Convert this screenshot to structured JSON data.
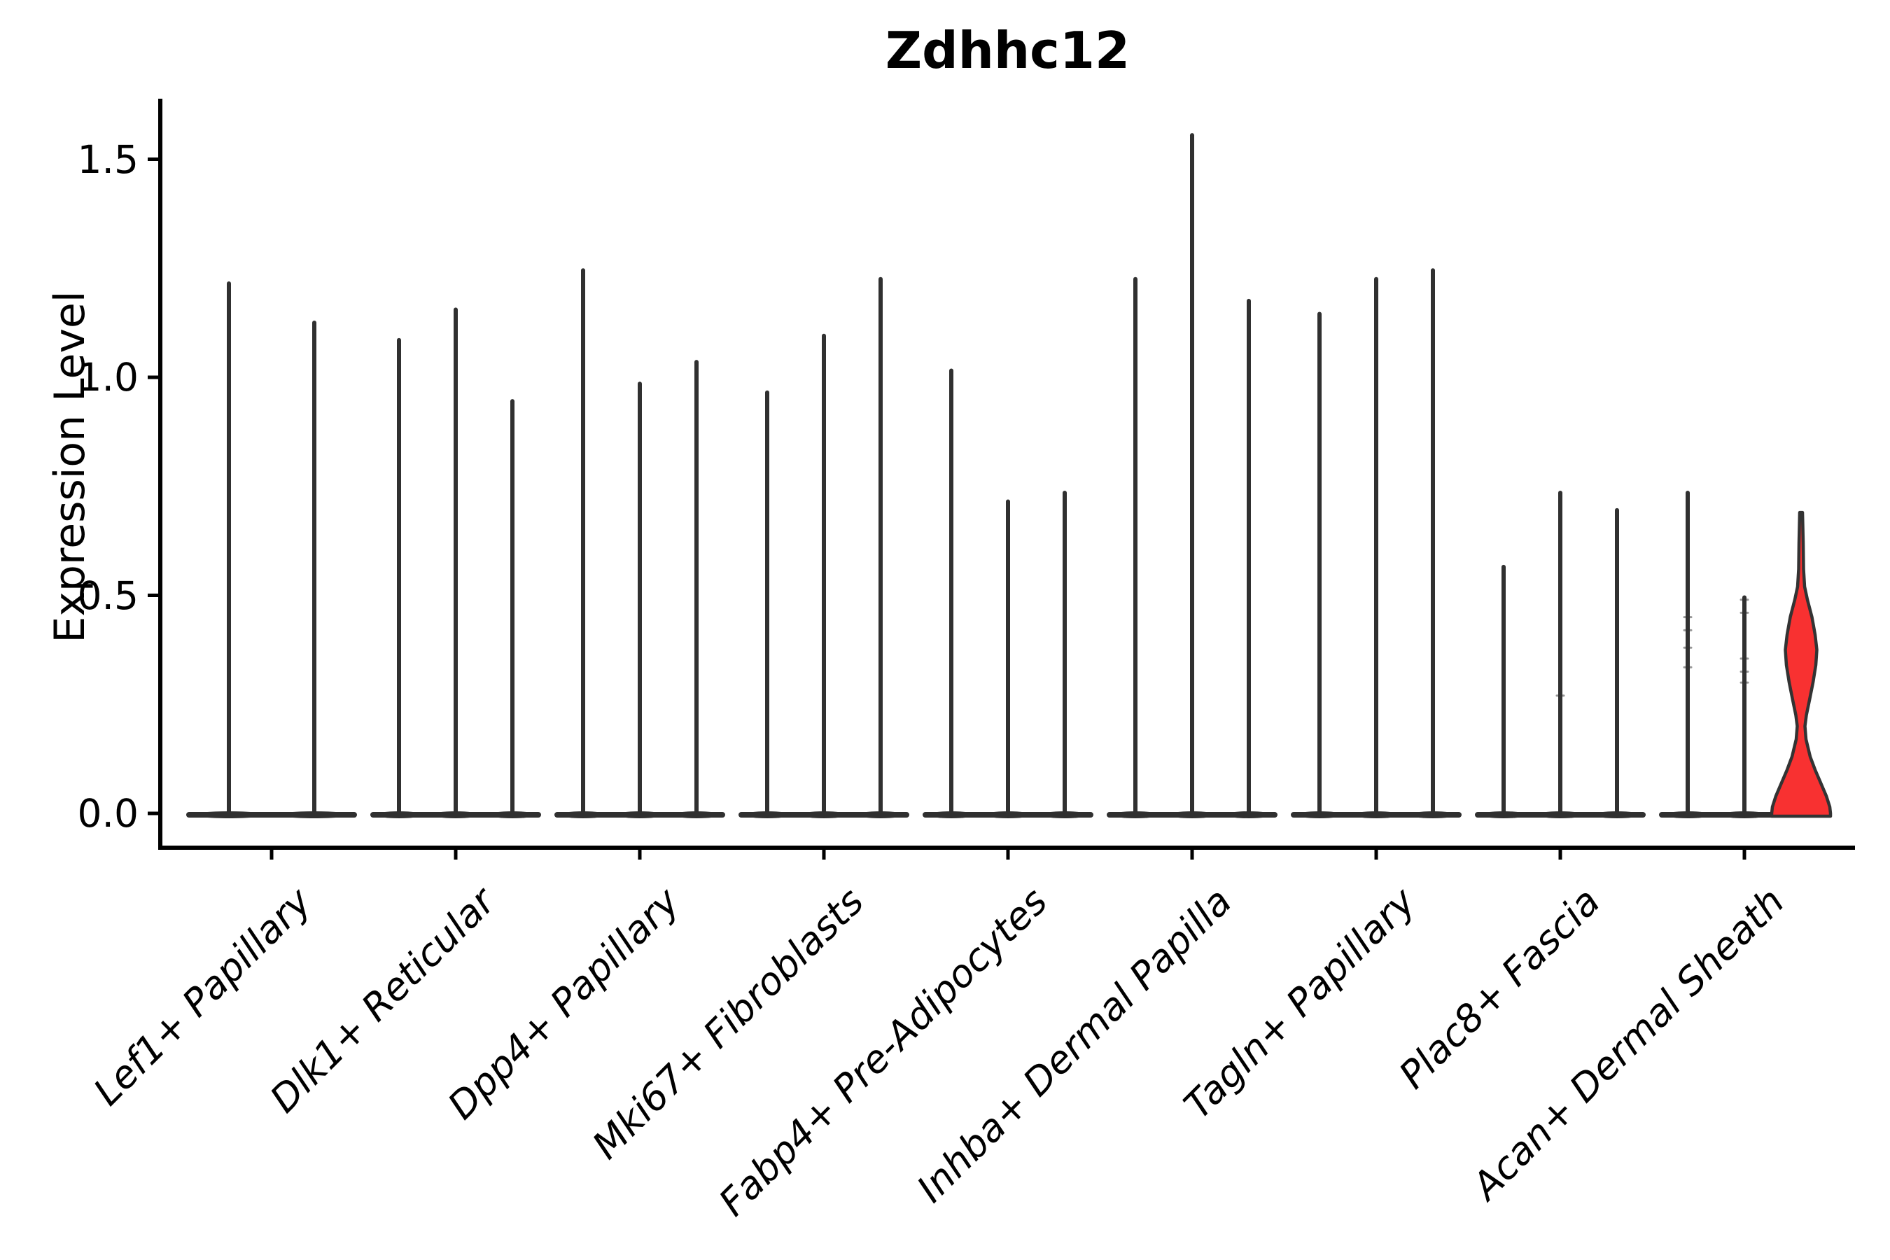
{
  "title": "Zdhhc12",
  "ylabel": "Expression Level",
  "chart_data": {
    "type": "violin",
    "title": "Zdhhc12",
    "xlabel": "",
    "ylabel": "Expression Level",
    "ylim": [
      -0.08,
      1.67
    ],
    "yticks": [
      0.0,
      0.5,
      1.0,
      1.5
    ],
    "ytick_labels": [
      "0.0",
      "0.5",
      "1.0",
      "1.5"
    ],
    "legend": "none",
    "grid": false,
    "description": "Violin plot of Zdhhc12 expression; 9 cell-type groups, each containing 2-3 sub-violins. Almost all violins collapse to a flat base at 0 with a thin spike up to their max expression value. The last violin of the last group is highlighted red with a visible KDE bulge.",
    "categories": [
      "Lef1+ Papillary",
      "Dlk1+ Reticular",
      "Dpp4+ Papillary",
      "Mki67+ Fibroblasts",
      "Fabp4+ Pre-Adipocytes",
      "Inhba+ Dermal Papilla",
      "Tagln+ Papillary",
      "Plac8+ Fascia",
      "Acan+ Dermal Sheath"
    ],
    "groups": [
      {
        "label": "Lef1+ Papillary",
        "violins": [
          {
            "max": 1.22
          },
          {
            "max": 1.13
          }
        ]
      },
      {
        "label": "Dlk1+ Reticular",
        "violins": [
          {
            "max": 1.09
          },
          {
            "max": 1.16
          },
          {
            "max": 0.95
          }
        ]
      },
      {
        "label": "Dpp4+ Papillary",
        "violins": [
          {
            "max": 1.25
          },
          {
            "max": 0.99
          },
          {
            "max": 1.04
          }
        ]
      },
      {
        "label": "Mki67+ Fibroblasts",
        "violins": [
          {
            "max": 0.97
          },
          {
            "max": 1.1
          },
          {
            "max": 1.23
          }
        ]
      },
      {
        "label": "Fabp4+ Pre-Adipocytes",
        "violins": [
          {
            "max": 1.02
          },
          {
            "max": 0.72
          },
          {
            "max": 0.74
          }
        ]
      },
      {
        "label": "Inhba+ Dermal Papilla",
        "violins": [
          {
            "max": 1.23
          },
          {
            "max": 1.56
          },
          {
            "max": 1.18
          }
        ]
      },
      {
        "label": "Tagln+ Papillary",
        "violins": [
          {
            "max": 1.15
          },
          {
            "max": 1.23
          },
          {
            "max": 1.25
          }
        ]
      },
      {
        "label": "Plac8+ Fascia",
        "violins": [
          {
            "max": 0.57
          },
          {
            "max": 0.74,
            "marks": [
              0.27
            ]
          },
          {
            "max": 0.7
          }
        ]
      },
      {
        "label": "Acan+ Dermal Sheath",
        "violins": [
          {
            "max": 0.74,
            "marks": [
              0.45,
              0.42,
              0.38,
              0.335
            ]
          },
          {
            "max": 0.5,
            "marks": [
              0.49,
              0.46,
              0.355,
              0.325,
              0.3
            ]
          },
          {
            "max": 0.69,
            "highlight": true
          }
        ]
      }
    ],
    "highlight_profile": [
      [
        0.69,
        2
      ],
      [
        0.62,
        3
      ],
      [
        0.56,
        3.5
      ],
      [
        0.52,
        5
      ],
      [
        0.49,
        9
      ],
      [
        0.45,
        15.5
      ],
      [
        0.41,
        20
      ],
      [
        0.375,
        22.5
      ],
      [
        0.34,
        21
      ],
      [
        0.3,
        17
      ],
      [
        0.26,
        12
      ],
      [
        0.225,
        7.5
      ],
      [
        0.2,
        5.5
      ],
      [
        0.17,
        7
      ],
      [
        0.13,
        13
      ],
      [
        0.1,
        20
      ],
      [
        0.07,
        28
      ],
      [
        0.04,
        36
      ],
      [
        0.015,
        41
      ],
      [
        0.0,
        42
      ]
    ],
    "colors": {
      "violin_line": "#303030",
      "highlight_fill": "#f83131",
      "highlight_edge": "#333333",
      "axis": "#000000",
      "text": "#000000",
      "background": "#ffffff"
    }
  }
}
